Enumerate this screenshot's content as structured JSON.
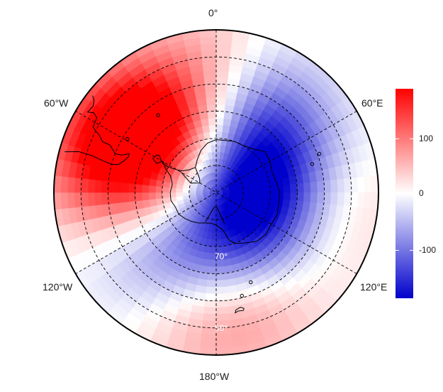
{
  "map": {
    "projection": "south polar stereographic",
    "longitude_labels": {
      "top": "0°",
      "upper_left": "60°W",
      "upper_right": "60°E",
      "lower_left": "120°W",
      "lower_right": "120°E",
      "bottom": "180°W"
    },
    "latitude_labels": {
      "inner": "70°",
      "outer": "50°"
    },
    "field_anomalies": [
      {
        "lon": -55,
        "lat": -52,
        "value": 160
      },
      {
        "lon": -35,
        "lat": -60,
        "value": 120
      },
      {
        "lon": -80,
        "lat": -45,
        "value": 100
      },
      {
        "lon": -90,
        "lat": -70,
        "value": 60
      },
      {
        "lon": 40,
        "lat": -60,
        "value": -90
      },
      {
        "lon": 20,
        "lat": -50,
        "value": -40
      },
      {
        "lon": 110,
        "lat": -75,
        "value": -100
      },
      {
        "lon": 150,
        "lat": -72,
        "value": -90
      },
      {
        "lon": 70,
        "lat": -72,
        "value": -70
      },
      {
        "lon": -150,
        "lat": -62,
        "value": -70
      },
      {
        "lon": -120,
        "lat": -58,
        "value": -50
      },
      {
        "lon": 100,
        "lat": -45,
        "value": 40
      },
      {
        "lon": 160,
        "lat": -45,
        "value": 70
      },
      {
        "lon": -170,
        "lat": -42,
        "value": 60
      },
      {
        "lon": 0,
        "lat": -42,
        "value": 60
      },
      {
        "lon": -10,
        "lat": -75,
        "value": -30
      }
    ],
    "colors": {
      "high": "#ff0000",
      "mid": "#ffffff",
      "low": "#0000cc"
    }
  },
  "colorbar": {
    "ticks": [
      {
        "value": 100,
        "label": "100"
      },
      {
        "value": 0,
        "label": "0"
      },
      {
        "value": -100,
        "label": "-100"
      }
    ],
    "range": [
      -185,
      185
    ]
  }
}
